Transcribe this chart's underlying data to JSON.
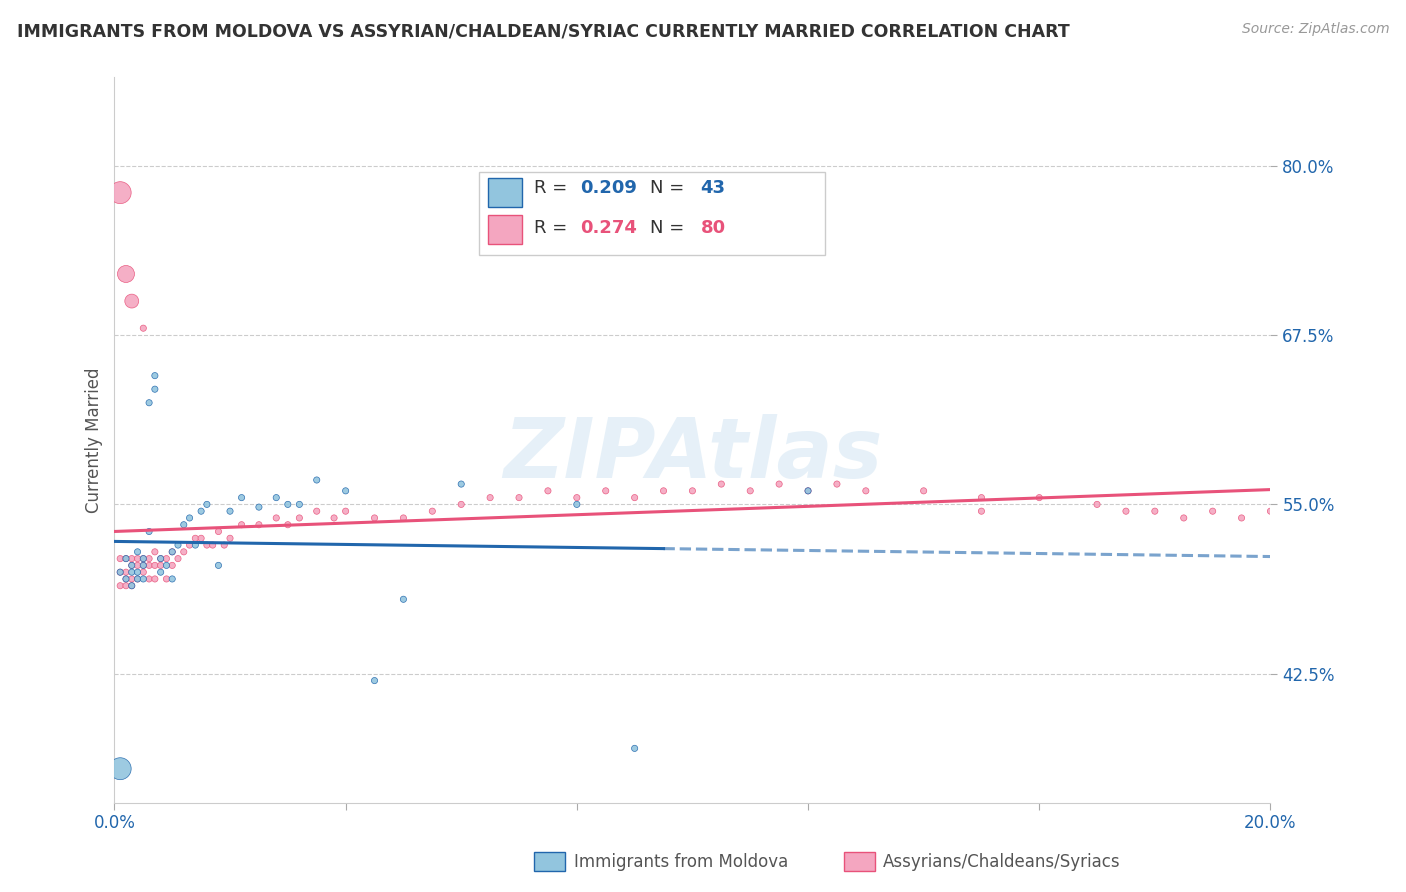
{
  "title": "IMMIGRANTS FROM MOLDOVA VS ASSYRIAN/CHALDEAN/SYRIAC CURRENTLY MARRIED CORRELATION CHART",
  "source": "Source: ZipAtlas.com",
  "ylabel": "Currently Married",
  "ytick_labels": [
    "80.0%",
    "67.5%",
    "55.0%",
    "42.5%"
  ],
  "ytick_values": [
    0.8,
    0.675,
    0.55,
    0.425
  ],
  "xlim": [
    0.0,
    0.2
  ],
  "ylim": [
    0.33,
    0.865
  ],
  "color_blue": "#92c5de",
  "color_pink": "#f4a6c0",
  "color_blue_line": "#2166ac",
  "color_pink_line": "#e8527a",
  "color_dashed": "#aec7e8",
  "watermark": "ZIPAtlas",
  "blue_R": 0.209,
  "blue_N": 43,
  "pink_R": 0.274,
  "pink_N": 80,
  "blue_x": [
    0.001,
    0.002,
    0.002,
    0.003,
    0.003,
    0.003,
    0.004,
    0.004,
    0.004,
    0.005,
    0.005,
    0.005,
    0.006,
    0.006,
    0.007,
    0.007,
    0.008,
    0.008,
    0.009,
    0.01,
    0.01,
    0.011,
    0.012,
    0.013,
    0.014,
    0.015,
    0.016,
    0.018,
    0.02,
    0.022,
    0.025,
    0.028,
    0.03,
    0.032,
    0.035,
    0.04,
    0.045,
    0.05,
    0.06,
    0.08,
    0.09,
    0.12,
    0.001
  ],
  "blue_y": [
    0.5,
    0.495,
    0.51,
    0.49,
    0.505,
    0.5,
    0.495,
    0.515,
    0.5,
    0.505,
    0.51,
    0.495,
    0.53,
    0.625,
    0.635,
    0.645,
    0.5,
    0.51,
    0.505,
    0.515,
    0.495,
    0.52,
    0.535,
    0.54,
    0.52,
    0.545,
    0.55,
    0.505,
    0.545,
    0.555,
    0.548,
    0.555,
    0.55,
    0.55,
    0.568,
    0.56,
    0.42,
    0.48,
    0.565,
    0.55,
    0.37,
    0.56,
    0.355
  ],
  "blue_size": [
    20,
    20,
    20,
    20,
    20,
    20,
    20,
    20,
    20,
    20,
    20,
    20,
    20,
    20,
    20,
    20,
    20,
    20,
    20,
    20,
    20,
    20,
    20,
    20,
    20,
    20,
    20,
    20,
    20,
    20,
    20,
    20,
    20,
    20,
    20,
    20,
    20,
    20,
    20,
    20,
    20,
    20,
    250
  ],
  "pink_x": [
    0.001,
    0.001,
    0.001,
    0.002,
    0.002,
    0.002,
    0.002,
    0.003,
    0.003,
    0.003,
    0.003,
    0.004,
    0.004,
    0.004,
    0.005,
    0.005,
    0.005,
    0.006,
    0.006,
    0.006,
    0.007,
    0.007,
    0.007,
    0.008,
    0.008,
    0.009,
    0.009,
    0.01,
    0.01,
    0.011,
    0.012,
    0.013,
    0.014,
    0.015,
    0.016,
    0.017,
    0.018,
    0.019,
    0.02,
    0.022,
    0.025,
    0.028,
    0.03,
    0.032,
    0.035,
    0.038,
    0.04,
    0.045,
    0.05,
    0.055,
    0.06,
    0.065,
    0.07,
    0.075,
    0.08,
    0.085,
    0.09,
    0.095,
    0.1,
    0.105,
    0.11,
    0.115,
    0.12,
    0.125,
    0.13,
    0.14,
    0.15,
    0.16,
    0.17,
    0.175,
    0.18,
    0.185,
    0.19,
    0.195,
    0.2,
    0.001,
    0.002,
    0.003,
    0.005,
    0.15
  ],
  "pink_y": [
    0.5,
    0.49,
    0.51,
    0.495,
    0.5,
    0.51,
    0.49,
    0.505,
    0.495,
    0.51,
    0.49,
    0.505,
    0.51,
    0.495,
    0.5,
    0.505,
    0.51,
    0.505,
    0.495,
    0.51,
    0.505,
    0.515,
    0.495,
    0.51,
    0.505,
    0.51,
    0.495,
    0.515,
    0.505,
    0.51,
    0.515,
    0.52,
    0.525,
    0.525,
    0.52,
    0.52,
    0.53,
    0.52,
    0.525,
    0.535,
    0.535,
    0.54,
    0.535,
    0.54,
    0.545,
    0.54,
    0.545,
    0.54,
    0.54,
    0.545,
    0.55,
    0.555,
    0.555,
    0.56,
    0.555,
    0.56,
    0.555,
    0.56,
    0.56,
    0.565,
    0.56,
    0.565,
    0.56,
    0.565,
    0.56,
    0.56,
    0.555,
    0.555,
    0.55,
    0.545,
    0.545,
    0.54,
    0.545,
    0.54,
    0.545,
    0.78,
    0.72,
    0.7,
    0.68,
    0.545
  ],
  "pink_size": [
    20,
    20,
    20,
    20,
    20,
    20,
    20,
    20,
    20,
    20,
    20,
    20,
    20,
    20,
    20,
    20,
    20,
    20,
    20,
    20,
    20,
    20,
    20,
    20,
    20,
    20,
    20,
    20,
    20,
    20,
    20,
    20,
    20,
    20,
    20,
    20,
    20,
    20,
    20,
    20,
    20,
    20,
    20,
    20,
    20,
    20,
    20,
    20,
    20,
    20,
    20,
    20,
    20,
    20,
    20,
    20,
    20,
    20,
    20,
    20,
    20,
    20,
    20,
    20,
    20,
    20,
    20,
    20,
    20,
    20,
    20,
    20,
    20,
    20,
    20,
    250,
    150,
    100,
    20,
    20
  ]
}
